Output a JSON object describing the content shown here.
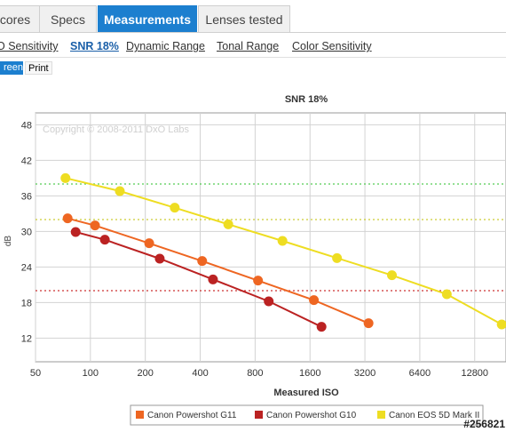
{
  "tabs": [
    {
      "label": "cores",
      "active": false
    },
    {
      "label": "Specs",
      "active": false
    },
    {
      "label": "Measurements",
      "active": true
    },
    {
      "label": "Lenses tested",
      "active": false
    }
  ],
  "subnav": [
    {
      "label": "O Sensitivity",
      "active": false
    },
    {
      "label": "SNR 18%",
      "active": true
    },
    {
      "label": "Dynamic Range",
      "active": false
    },
    {
      "label": "Tonal Range",
      "active": false
    },
    {
      "label": "Color Sensitivity",
      "active": false
    }
  ],
  "view_buttons": {
    "screen": "reen",
    "print": "Print"
  },
  "watermark": "#256821",
  "chart_data": {
    "type": "line",
    "title": "SNR 18%",
    "copyright": "Copyright © 2008-2011 DxO Labs",
    "xlabel": "Measured ISO",
    "ylabel": "dB",
    "x_scale": "log2",
    "xlim": [
      50,
      19000
    ],
    "ylim": [
      8,
      50
    ],
    "x_ticks": [
      50,
      100,
      200,
      400,
      800,
      1600,
      3200,
      6400,
      12800
    ],
    "y_ticks": [
      12,
      18,
      24,
      30,
      36,
      42,
      48
    ],
    "grid": true,
    "legend_position": "bottom",
    "reference_lines": [
      {
        "y": 38,
        "color": "#55cc55"
      },
      {
        "y": 32,
        "color": "#cccc33"
      },
      {
        "y": 20,
        "color": "#cc3333"
      }
    ],
    "series": [
      {
        "name": "Canon Powershot G11",
        "color": "#ee6622",
        "points": [
          [
            75,
            32.2
          ],
          [
            106,
            31
          ],
          [
            210,
            28
          ],
          [
            410,
            25
          ],
          [
            830,
            21.7
          ],
          [
            1680,
            18.4
          ],
          [
            3350,
            14.5
          ]
        ]
      },
      {
        "name": "Canon Powershot G10",
        "color": "#bb2222",
        "points": [
          [
            83,
            29.9
          ],
          [
            120,
            28.6
          ],
          [
            240,
            25.4
          ],
          [
            470,
            21.9
          ],
          [
            950,
            18.2
          ],
          [
            1850,
            13.9
          ]
        ]
      },
      {
        "name": "Canon EOS 5D Mark II",
        "color": "#eedd22",
        "points": [
          [
            73,
            39
          ],
          [
            145,
            36.8
          ],
          [
            290,
            34
          ],
          [
            570,
            31.2
          ],
          [
            1130,
            28.4
          ],
          [
            2250,
            25.5
          ],
          [
            4500,
            22.6
          ],
          [
            9000,
            19.4
          ],
          [
            18000,
            14.3
          ]
        ]
      }
    ]
  }
}
